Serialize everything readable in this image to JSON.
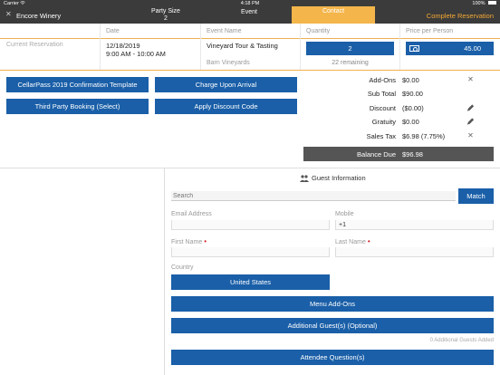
{
  "status_bar": {
    "carrier": "Carrier",
    "wifi_icon": "wifi-icon",
    "time": "4:18 PM",
    "battery": "100%"
  },
  "navbar": {
    "close_icon": "close-icon",
    "title": "Encore Winery",
    "party_size_label": "Party Size",
    "party_size_value": "2",
    "event_label": "Event",
    "contact_label": "Contact",
    "complete_label": "Complete Reservation",
    "accent_color": "#f4b54b"
  },
  "table": {
    "headers": {
      "date": "Date",
      "event_name": "Event Name",
      "quantity": "Quantity",
      "price": "Price per Person"
    },
    "current_reservation": "Current Reservation",
    "date": "12/18/2019",
    "time": "9:00 AM - 10:00 AM",
    "event_name": "Vineyard Tour & Tasting",
    "event_location": "Barn Vineyards",
    "quantity": "2",
    "remaining": "22 remaining",
    "price": "45.00"
  },
  "actions": {
    "confirmation_template": "CellarPass 2019 Confirmation Template",
    "charge_upon_arrival": "Charge Upon Arrival",
    "third_party_booking": "Third Party Booking (Select)",
    "apply_discount": "Apply Discount Code"
  },
  "summary": {
    "addons_label": "Add-Ons",
    "addons_value": "$0.00",
    "subtotal_label": "Sub Total",
    "subtotal_value": "$90.00",
    "discount_label": "Discount",
    "discount_value": "($0.00)",
    "gratuity_label": "Gratuity",
    "gratuity_value": "$0.00",
    "sales_tax_label": "Sales Tax",
    "sales_tax_value": "$6.98 (7.75%)",
    "balance_label": "Balance Due",
    "balance_value": "$96.98"
  },
  "guest": {
    "title": "Guest Information",
    "search_placeholder": "Search",
    "match_label": "Match",
    "email_label": "Email Address",
    "mobile_label": "Mobile",
    "mobile_value": "+1",
    "first_name_label": "First Name",
    "last_name_label": "Last Name",
    "required_mark": "•",
    "country_label": "Country",
    "country_value": "United States",
    "menu_addons": "Menu Add-Ons",
    "additional_guests": "Additional Guest(s) (Optional)",
    "additional_guests_added": "0 Additional Guests Added",
    "attendee_questions": "Attendee Question(s)"
  },
  "colors": {
    "primary_blue": "#1a5fa8",
    "dark_bar": "#3b3b3b",
    "balance_bg": "#555555",
    "orange": "#f4a833"
  }
}
